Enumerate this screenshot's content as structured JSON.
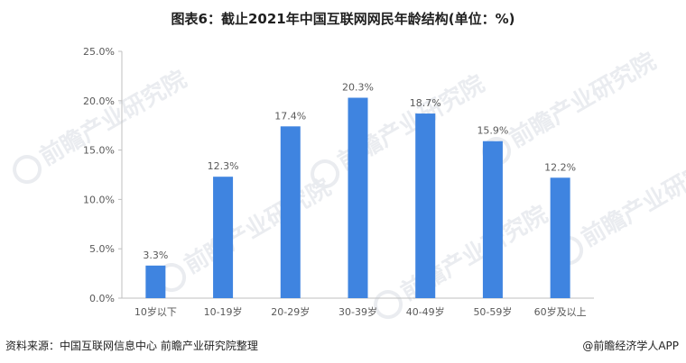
{
  "title": "图表6：截止2021年中国互联网网民年龄结构(单位：%)",
  "source": "资料来源：中国互联网信息中心 前瞻产业研究院整理",
  "brand": "@前瞻经济学人APP",
  "watermark_text": "前瞻产业研究院",
  "colors": {
    "bar": "#3f84e0",
    "axis": "#bfbfbf",
    "text": "#595959"
  },
  "chart_data": {
    "type": "bar",
    "title": "图表6：截止2021年中国互联网网民年龄结构(单位：%)",
    "xlabel": "",
    "ylabel": "",
    "categories": [
      "10岁以下",
      "10-19岁",
      "20-29岁",
      "30-39岁",
      "40-49岁",
      "50-59岁",
      "60岁及以上"
    ],
    "values": [
      3.3,
      12.3,
      17.4,
      20.3,
      18.7,
      15.9,
      12.2
    ],
    "value_labels": [
      "3.3%",
      "12.3%",
      "17.4%",
      "20.3%",
      "18.7%",
      "15.9%",
      "12.2%"
    ],
    "ylim": [
      0,
      25
    ],
    "yticks": [
      0,
      5,
      10,
      15,
      20,
      25
    ],
    "ytick_labels": [
      "0.0%",
      "5.0%",
      "10.0%",
      "15.0%",
      "20.0%",
      "25.0%"
    ],
    "grid": false,
    "legend": "none"
  }
}
